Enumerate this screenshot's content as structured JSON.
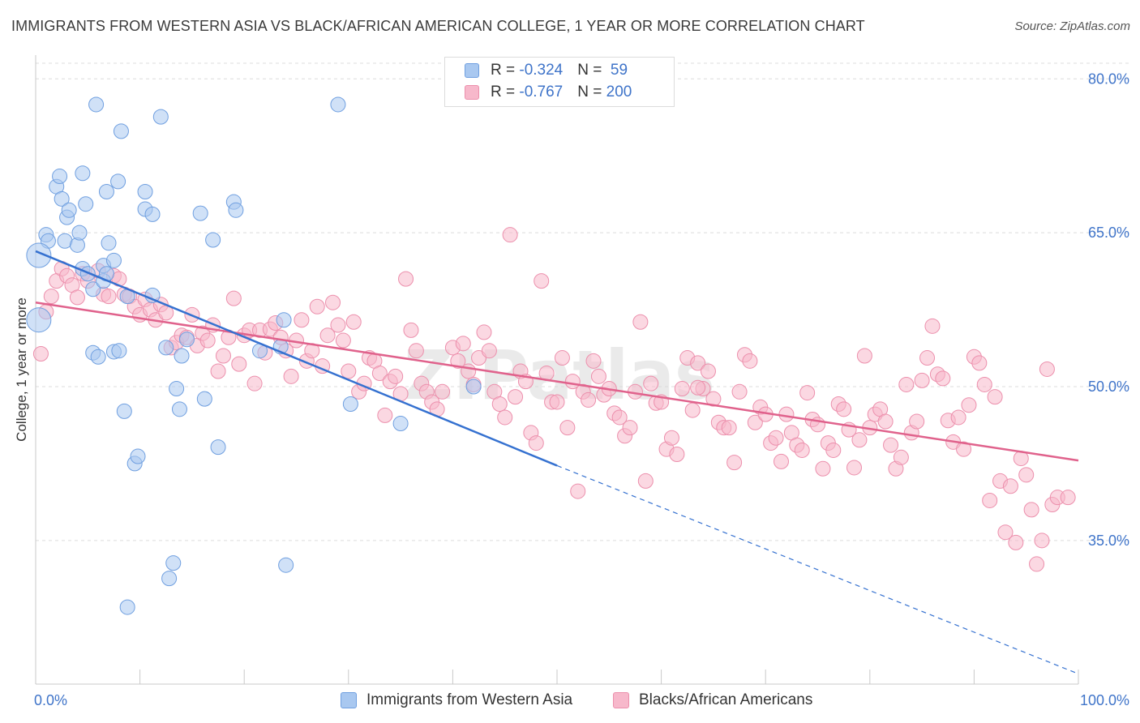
{
  "title": "IMMIGRANTS FROM WESTERN ASIA VS BLACK/AFRICAN AMERICAN COLLEGE, 1 YEAR OR MORE CORRELATION CHART",
  "source": "Source: ZipAtlas.com",
  "watermark": "ZIPatlas",
  "legend": {
    "rows": [
      {
        "r_label": "R = ",
        "r_value": "-0.324",
        "n_label": "N = ",
        "n_value": " 59"
      },
      {
        "r_label": "R = ",
        "r_value": "-0.767",
        "n_label": "N = ",
        "n_value": "200"
      }
    ]
  },
  "colors": {
    "blue_fill": "#a9c8f0",
    "blue_stroke": "#6f9fe0",
    "blue_line": "#3571d0",
    "pink_fill": "#f7b8cb",
    "pink_stroke": "#ec8fac",
    "pink_line": "#e0628c",
    "grid": "#dcdcdc",
    "tick_text": "#3f74c9"
  },
  "chart_data": {
    "type": "scatter",
    "title": "IMMIGRANTS FROM WESTERN ASIA VS BLACK/AFRICAN AMERICAN COLLEGE, 1 YEAR OR MORE CORRELATION CHART",
    "xlabel": "",
    "ylabel": "College, 1 year or more",
    "xlim": [
      0,
      100
    ],
    "ylim": [
      21,
      82
    ],
    "x_tick_labels": [
      "0.0%",
      "100.0%"
    ],
    "y_ticks": [
      35,
      50,
      65,
      80
    ],
    "y_tick_labels": [
      "35.0%",
      "50.0%",
      "65.0%",
      "80.0%"
    ],
    "grid": true,
    "legend_position": "top-center",
    "series": [
      {
        "name": "Immigrants from Western Asia",
        "color": "#a9c8f0",
        "trend": {
          "x": [
            0,
            50
          ],
          "y": [
            63.2,
            42.3
          ],
          "dashed_to": [
            100,
            22.0
          ]
        },
        "points": [
          [
            1,
            64.8
          ],
          [
            1.2,
            64.2
          ],
          [
            2,
            69.5
          ],
          [
            2.8,
            64.2
          ],
          [
            2.3,
            70.5
          ],
          [
            2.5,
            68.3
          ],
          [
            3,
            66.5
          ],
          [
            3.2,
            67.2
          ],
          [
            4,
            63.8
          ],
          [
            4.2,
            65.0
          ],
          [
            4.5,
            70.8
          ],
          [
            4.5,
            61.5
          ],
          [
            4.8,
            67.8
          ],
          [
            5,
            61.0
          ],
          [
            5.5,
            59.5
          ],
          [
            5.5,
            53.3
          ],
          [
            5.8,
            77.5
          ],
          [
            6,
            52.9
          ],
          [
            6.5,
            60.3
          ],
          [
            6.5,
            61.8
          ],
          [
            6.8,
            61.0
          ],
          [
            6.8,
            69.0
          ],
          [
            7,
            64.0
          ],
          [
            7.5,
            62.3
          ],
          [
            7.5,
            53.4
          ],
          [
            7.9,
            70.0
          ],
          [
            8,
            53.5
          ],
          [
            8.2,
            74.9
          ],
          [
            8.5,
            47.6
          ],
          [
            8.8,
            58.8
          ],
          [
            8.8,
            28.5
          ],
          [
            9.5,
            42.5
          ],
          [
            9.8,
            43.2
          ],
          [
            10.5,
            67.3
          ],
          [
            10.5,
            69.0
          ],
          [
            11.2,
            66.8
          ],
          [
            11.2,
            58.9
          ],
          [
            12,
            76.3
          ],
          [
            12.8,
            31.3
          ],
          [
            12.5,
            53.8
          ],
          [
            13.2,
            32.8
          ],
          [
            13.5,
            49.8
          ],
          [
            13.8,
            47.8
          ],
          [
            14,
            53.0
          ],
          [
            14.5,
            54.6
          ],
          [
            15.8,
            66.9
          ],
          [
            16.2,
            48.8
          ],
          [
            17,
            64.3
          ],
          [
            17.5,
            44.1
          ],
          [
            19,
            68.0
          ],
          [
            19.2,
            67.2
          ],
          [
            21.5,
            53.5
          ],
          [
            23.5,
            53.9
          ],
          [
            23.8,
            56.5
          ],
          [
            24,
            32.6
          ],
          [
            29,
            77.5
          ],
          [
            30.2,
            48.3
          ],
          [
            35,
            46.4
          ],
          [
            42,
            50.0
          ],
          [
            0.3,
            62.8
          ],
          [
            0.3,
            56.5
          ]
        ]
      },
      {
        "name": "Blacks/African Americans",
        "color": "#f7b8cb",
        "trend": {
          "x": [
            0,
            100
          ],
          "y": [
            58.2,
            42.8
          ]
        },
        "points": [
          [
            0.5,
            53.2
          ],
          [
            1,
            57.3
          ],
          [
            1.5,
            58.8
          ],
          [
            2,
            60.3
          ],
          [
            2.5,
            61.5
          ],
          [
            3,
            60.8
          ],
          [
            3.5,
            59.9
          ],
          [
            4,
            58.7
          ],
          [
            4.5,
            61.0
          ],
          [
            5,
            60.3
          ],
          [
            6,
            61.3
          ],
          [
            6.5,
            59.0
          ],
          [
            7,
            58.8
          ],
          [
            7.5,
            60.8
          ],
          [
            8,
            60.5
          ],
          [
            8.5,
            59.0
          ],
          [
            9,
            58.8
          ],
          [
            9.5,
            57.8
          ],
          [
            10,
            57.0
          ],
          [
            10.5,
            58.5
          ],
          [
            11,
            57.5
          ],
          [
            11.5,
            56.5
          ],
          [
            12,
            58.0
          ],
          [
            12.5,
            57.2
          ],
          [
            13,
            53.8
          ],
          [
            13.5,
            54.3
          ],
          [
            14,
            55.0
          ],
          [
            14.5,
            54.8
          ],
          [
            15,
            57.0
          ],
          [
            15.5,
            54.0
          ],
          [
            16,
            55.2
          ],
          [
            16.5,
            54.5
          ],
          [
            17,
            56.0
          ],
          [
            17.5,
            51.5
          ],
          [
            18,
            53.0
          ],
          [
            18.5,
            54.8
          ],
          [
            19,
            58.6
          ],
          [
            19.5,
            52.2
          ],
          [
            20,
            55.0
          ],
          [
            20.5,
            55.5
          ],
          [
            21,
            50.3
          ],
          [
            21.5,
            55.5
          ],
          [
            22,
            53.3
          ],
          [
            22.5,
            55.6
          ],
          [
            23,
            56.2
          ],
          [
            23.5,
            54.8
          ],
          [
            24,
            53.5
          ],
          [
            24.5,
            51.0
          ],
          [
            25,
            54.5
          ],
          [
            25.5,
            56.5
          ],
          [
            26,
            52.5
          ],
          [
            26.5,
            53.5
          ],
          [
            27,
            57.8
          ],
          [
            27.5,
            52.0
          ],
          [
            28,
            55.0
          ],
          [
            28.5,
            58.2
          ],
          [
            29,
            56.0
          ],
          [
            29.5,
            54.5
          ],
          [
            30,
            51.5
          ],
          [
            30.5,
            56.3
          ],
          [
            31,
            49.5
          ],
          [
            31.5,
            50.3
          ],
          [
            32,
            52.8
          ],
          [
            32.5,
            52.5
          ],
          [
            33,
            51.3
          ],
          [
            33.5,
            47.2
          ],
          [
            34,
            50.5
          ],
          [
            34.5,
            51.0
          ],
          [
            35,
            49.3
          ],
          [
            35.5,
            60.5
          ],
          [
            36,
            55.5
          ],
          [
            36.5,
            53.5
          ],
          [
            37,
            50.3
          ],
          [
            37.5,
            49.5
          ],
          [
            38,
            48.5
          ],
          [
            38.5,
            47.8
          ],
          [
            39,
            49.5
          ],
          [
            40,
            53.8
          ],
          [
            40.5,
            52.5
          ],
          [
            41,
            54.2
          ],
          [
            41.5,
            51.5
          ],
          [
            42,
            50.2
          ],
          [
            42.5,
            52.8
          ],
          [
            43,
            55.3
          ],
          [
            43.5,
            53.5
          ],
          [
            44,
            49.5
          ],
          [
            44.5,
            48.3
          ],
          [
            45,
            47.0
          ],
          [
            45.5,
            64.8
          ],
          [
            46,
            49.0
          ],
          [
            46.5,
            51.5
          ],
          [
            47,
            50.5
          ],
          [
            47.5,
            45.5
          ],
          [
            48,
            44.5
          ],
          [
            48.5,
            60.3
          ],
          [
            49,
            51.3
          ],
          [
            49.5,
            48.5
          ],
          [
            50,
            48.5
          ],
          [
            50.5,
            52.8
          ],
          [
            51,
            46.0
          ],
          [
            51.5,
            50.5
          ],
          [
            52,
            39.8
          ],
          [
            52.5,
            49.5
          ],
          [
            53,
            48.7
          ],
          [
            53.5,
            52.5
          ],
          [
            54,
            51.0
          ],
          [
            54.5,
            49.2
          ],
          [
            55,
            49.8
          ],
          [
            55.5,
            47.4
          ],
          [
            56,
            47.0
          ],
          [
            56.5,
            45.2
          ],
          [
            57,
            46.0
          ],
          [
            57.5,
            49.5
          ],
          [
            58,
            56.3
          ],
          [
            58.5,
            40.8
          ],
          [
            59,
            50.3
          ],
          [
            59.5,
            48.4
          ],
          [
            60,
            48.5
          ],
          [
            60.5,
            43.9
          ],
          [
            61,
            45.0
          ],
          [
            61.5,
            43.4
          ],
          [
            62,
            49.8
          ],
          [
            62.5,
            52.8
          ],
          [
            63,
            47.7
          ],
          [
            63.5,
            52.3
          ],
          [
            64,
            49.8
          ],
          [
            64.5,
            51.5
          ],
          [
            65,
            48.8
          ],
          [
            65.5,
            46.5
          ],
          [
            66,
            46.0
          ],
          [
            66.5,
            46.0
          ],
          [
            67,
            42.6
          ],
          [
            67.5,
            49.5
          ],
          [
            68,
            53.1
          ],
          [
            68.5,
            52.5
          ],
          [
            69,
            46.5
          ],
          [
            69.5,
            48.0
          ],
          [
            70,
            47.3
          ],
          [
            70.5,
            44.5
          ],
          [
            71,
            45.0
          ],
          [
            71.5,
            42.7
          ],
          [
            72,
            47.3
          ],
          [
            72.5,
            45.5
          ],
          [
            73,
            44.3
          ],
          [
            73.5,
            43.8
          ],
          [
            74,
            49.4
          ],
          [
            74.5,
            46.8
          ],
          [
            75,
            46.3
          ],
          [
            75.5,
            42.0
          ],
          [
            76,
            44.5
          ],
          [
            76.5,
            43.8
          ],
          [
            77,
            48.3
          ],
          [
            77.5,
            47.8
          ],
          [
            78,
            45.8
          ],
          [
            78.5,
            42.1
          ],
          [
            79,
            44.8
          ],
          [
            79.5,
            53.0
          ],
          [
            80,
            46.0
          ],
          [
            80.5,
            47.3
          ],
          [
            81,
            47.8
          ],
          [
            81.5,
            46.6
          ],
          [
            82,
            44.3
          ],
          [
            82.5,
            42.0
          ],
          [
            83,
            43.1
          ],
          [
            83.5,
            50.2
          ],
          [
            84,
            45.5
          ],
          [
            84.5,
            46.6
          ],
          [
            85,
            50.6
          ],
          [
            85.5,
            52.8
          ],
          [
            86,
            55.9
          ],
          [
            86.5,
            51.2
          ],
          [
            87,
            50.8
          ],
          [
            87.5,
            46.7
          ],
          [
            88,
            44.6
          ],
          [
            88.5,
            47.0
          ],
          [
            89,
            43.9
          ],
          [
            89.5,
            48.2
          ],
          [
            90,
            52.9
          ],
          [
            90.5,
            52.3
          ],
          [
            91,
            50.2
          ],
          [
            91.5,
            38.9
          ],
          [
            92,
            49.0
          ],
          [
            92.5,
            40.8
          ],
          [
            93,
            35.8
          ],
          [
            93.5,
            40.3
          ],
          [
            94,
            34.8
          ],
          [
            94.5,
            43.0
          ],
          [
            95,
            41.4
          ],
          [
            95.5,
            38.0
          ],
          [
            96,
            32.7
          ],
          [
            96.5,
            35.0
          ],
          [
            97,
            51.7
          ],
          [
            97.5,
            38.5
          ],
          [
            98,
            39.2
          ],
          [
            99,
            39.2
          ],
          [
            63.5,
            49.9
          ]
        ]
      }
    ]
  }
}
